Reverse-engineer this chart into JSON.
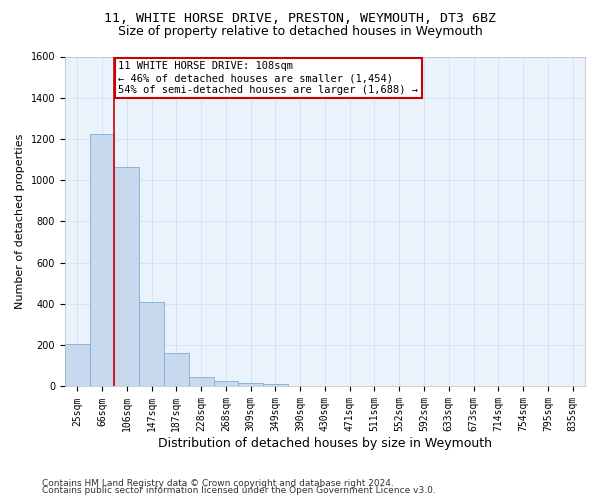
{
  "title1": "11, WHITE HORSE DRIVE, PRESTON, WEYMOUTH, DT3 6BZ",
  "title2": "Size of property relative to detached houses in Weymouth",
  "xlabel": "Distribution of detached houses by size in Weymouth",
  "ylabel": "Number of detached properties",
  "categories": [
    "25sqm",
    "66sqm",
    "106sqm",
    "147sqm",
    "187sqm",
    "228sqm",
    "268sqm",
    "309sqm",
    "349sqm",
    "390sqm",
    "430sqm",
    "471sqm",
    "511sqm",
    "552sqm",
    "592sqm",
    "633sqm",
    "673sqm",
    "714sqm",
    "754sqm",
    "795sqm",
    "835sqm"
  ],
  "values": [
    205,
    1225,
    1065,
    410,
    160,
    48,
    28,
    18,
    12,
    0,
    0,
    0,
    0,
    0,
    0,
    0,
    0,
    0,
    0,
    0,
    0
  ],
  "bar_color": "#c8d9ee",
  "bar_edge_color": "#7aadd4",
  "grid_color": "#d5e4f5",
  "bg_color": "#eaf2fb",
  "vline_color": "#cc0000",
  "annotation_text": "11 WHITE HORSE DRIVE: 108sqm\n← 46% of detached houses are smaller (1,454)\n54% of semi-detached houses are larger (1,688) →",
  "annotation_box_color": "#cc0000",
  "annotation_bg": "#ffffff",
  "ylim": [
    0,
    1600
  ],
  "yticks": [
    0,
    200,
    400,
    600,
    800,
    1000,
    1200,
    1400,
    1600
  ],
  "footer1": "Contains HM Land Registry data © Crown copyright and database right 2024.",
  "footer2": "Contains public sector information licensed under the Open Government Licence v3.0.",
  "title1_fontsize": 9.5,
  "title2_fontsize": 9,
  "xlabel_fontsize": 9,
  "ylabel_fontsize": 8,
  "tick_fontsize": 7,
  "footer_fontsize": 6.5,
  "ann_fontsize": 7.5
}
